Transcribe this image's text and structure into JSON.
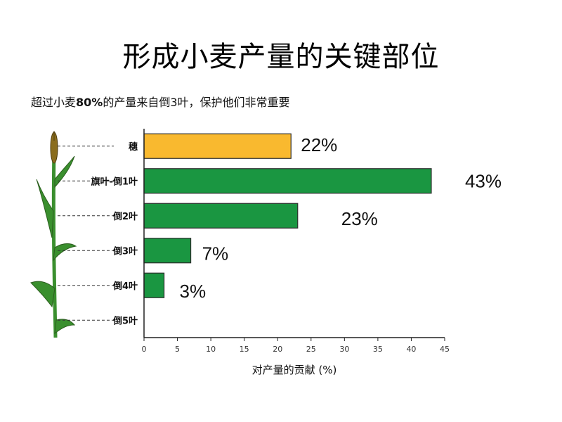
{
  "title": "形成小麦产量的关键部位",
  "subtitle": {
    "before": "超过小麦",
    "bold": "80%",
    "after": "的产量来自倒3叶，保护他们非常重要"
  },
  "chart_data": {
    "type": "bar",
    "orientation": "horizontal",
    "categories": [
      "穗",
      "旗叶-倒1叶",
      "倒2叶",
      "倒3叶",
      "倒4叶",
      "倒5叶"
    ],
    "values": [
      22,
      43,
      23,
      7,
      3,
      0
    ],
    "data_labels": [
      "22%",
      "43%",
      "23%",
      "7%",
      "3%",
      ""
    ],
    "colors": [
      "#f9b92f",
      "#1a9641",
      "#1a9641",
      "#1a9641",
      "#1a9641",
      "#1a9641"
    ],
    "xlabel": "对产量的贡献 (%)",
    "xlim": [
      0,
      45
    ],
    "xticks": [
      0,
      5,
      10,
      15,
      20,
      25,
      30,
      35,
      40,
      45
    ],
    "grid": false
  },
  "colors": {
    "bar_border": "#2d2d2d",
    "plant_green": "#3a8f2e",
    "plant_dark": "#2b5e1e",
    "ear": "#8a6d1e"
  }
}
